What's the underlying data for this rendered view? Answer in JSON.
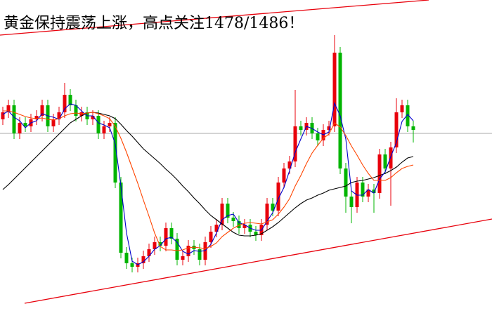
{
  "chart_data": {
    "type": "candlestick",
    "title": "黄金保持震荡上涨，高点关注1478/1486！",
    "ylim": [
      0,
      443
    ],
    "up_color": "#e8000b",
    "down_color": "#00b400",
    "open": [
      273,
      283,
      293,
      253,
      268,
      263,
      273,
      278,
      293,
      263,
      273,
      283,
      308,
      293,
      278,
      283,
      273,
      278,
      253,
      263,
      268,
      183,
      83,
      68,
      63,
      68,
      78,
      88,
      98,
      93,
      118,
      103,
      73,
      78,
      93,
      88,
      73,
      98,
      113,
      123,
      153,
      133,
      128,
      118,
      123,
      113,
      108,
      123,
      153,
      143,
      183,
      203,
      213,
      263,
      258,
      268,
      253,
      243,
      258,
      263,
      368,
      203,
      163,
      148,
      183,
      163,
      173,
      168,
      223,
      203,
      233,
      283,
      293,
      263
    ],
    "high": [
      291,
      301,
      301,
      276,
      276,
      281,
      286,
      301,
      301,
      281,
      291,
      325,
      316,
      301,
      291,
      291,
      286,
      286,
      271,
      276,
      276,
      191,
      91,
      76,
      76,
      86,
      96,
      106,
      106,
      126,
      126,
      111,
      86,
      101,
      101,
      96,
      106,
      121,
      131,
      161,
      161,
      141,
      136,
      131,
      131,
      121,
      131,
      161,
      161,
      191,
      211,
      221,
      315,
      271,
      276,
      276,
      261,
      266,
      271,
      393,
      376,
      211,
      171,
      191,
      191,
      181,
      181,
      231,
      231,
      241,
      303,
      301,
      301,
      271
    ],
    "low": [
      265,
      275,
      245,
      245,
      255,
      255,
      265,
      270,
      255,
      255,
      265,
      275,
      285,
      270,
      270,
      265,
      265,
      245,
      245,
      255,
      175,
      75,
      60,
      55,
      55,
      60,
      70,
      80,
      85,
      85,
      95,
      65,
      65,
      70,
      80,
      65,
      65,
      90,
      105,
      115,
      125,
      120,
      110,
      110,
      105,
      100,
      100,
      115,
      135,
      135,
      175,
      195,
      205,
      250,
      250,
      245,
      235,
      235,
      250,
      255,
      195,
      140,
      125,
      140,
      155,
      155,
      140,
      160,
      195,
      150,
      225,
      275,
      255,
      240
    ],
    "close": [
      283,
      293,
      253,
      268,
      263,
      273,
      278,
      293,
      263,
      273,
      283,
      308,
      293,
      278,
      283,
      273,
      278,
      253,
      263,
      268,
      183,
      83,
      68,
      63,
      68,
      78,
      88,
      98,
      93,
      118,
      103,
      73,
      78,
      93,
      88,
      73,
      98,
      113,
      123,
      153,
      133,
      128,
      118,
      123,
      113,
      108,
      123,
      153,
      143,
      183,
      203,
      213,
      263,
      258,
      268,
      253,
      243,
      258,
      263,
      368,
      203,
      163,
      148,
      183,
      163,
      173,
      168,
      223,
      203,
      233,
      283,
      293,
      263,
      258
    ],
    "series": [
      {
        "color": "#000000",
        "values": [
          173,
          180,
          188,
          196,
          204,
          212,
          220,
          228,
          236,
          244,
          252,
          260,
          268,
          273,
          278,
          282,
          283,
          282,
          280,
          278,
          274,
          266,
          257,
          249,
          240,
          231,
          224,
          217,
          210,
          202,
          195,
          187,
          178,
          170,
          161,
          153,
          144,
          136,
          130,
          124,
          118,
          112,
          108,
          107,
          107,
          108,
          110,
          115,
          120,
          126,
          133,
          140,
          147,
          153,
          158,
          161,
          165,
          168,
          172,
          174,
          176,
          178,
          183,
          185,
          186,
          188,
          190,
          193,
          196,
          200,
          205,
          212,
          218,
          220
        ]
      },
      {
        "color": "#0000cc",
        "values": [
          280,
          285,
          276,
          271,
          261,
          268,
          271,
          281,
          278,
          276,
          273,
          288,
          295,
          293,
          285,
          278,
          278,
          268,
          265,
          261,
          238,
          178,
          111,
          71,
          66,
          70,
          78,
          88,
          93,
          103,
          105,
          98,
          85,
          81,
          86,
          85,
          86,
          95,
          111,
          130,
          136,
          138,
          126,
          123,
          118,
          115,
          115,
          128,
          140,
          160,
          176,
          200,
          226,
          245,
          263,
          260,
          255,
          251,
          255,
          296,
          278,
          245,
          171,
          165,
          165,
          173,
          168,
          188,
          198,
          220,
          240,
          270,
          280,
          271
        ]
      },
      {
        "color": "#ff4500",
        "values": [
          285,
          285,
          283,
          280,
          277,
          275,
          274,
          275,
          273,
          272,
          274,
          278,
          281,
          282,
          281,
          282,
          283,
          281,
          278,
          274,
          263,
          246,
          226,
          204,
          182,
          158,
          135,
          111,
          92,
          87,
          87,
          86,
          87,
          90,
          91,
          90,
          89,
          92,
          97,
          106,
          112,
          118,
          122,
          125,
          126,
          125,
          124,
          127,
          130,
          138,
          148,
          160,
          178,
          193,
          210,
          225,
          236,
          246,
          252,
          268,
          262,
          250,
          235,
          222,
          208,
          196,
          186,
          186,
          186,
          190,
          197,
          203,
          206,
          208
        ]
      }
    ]
  }
}
